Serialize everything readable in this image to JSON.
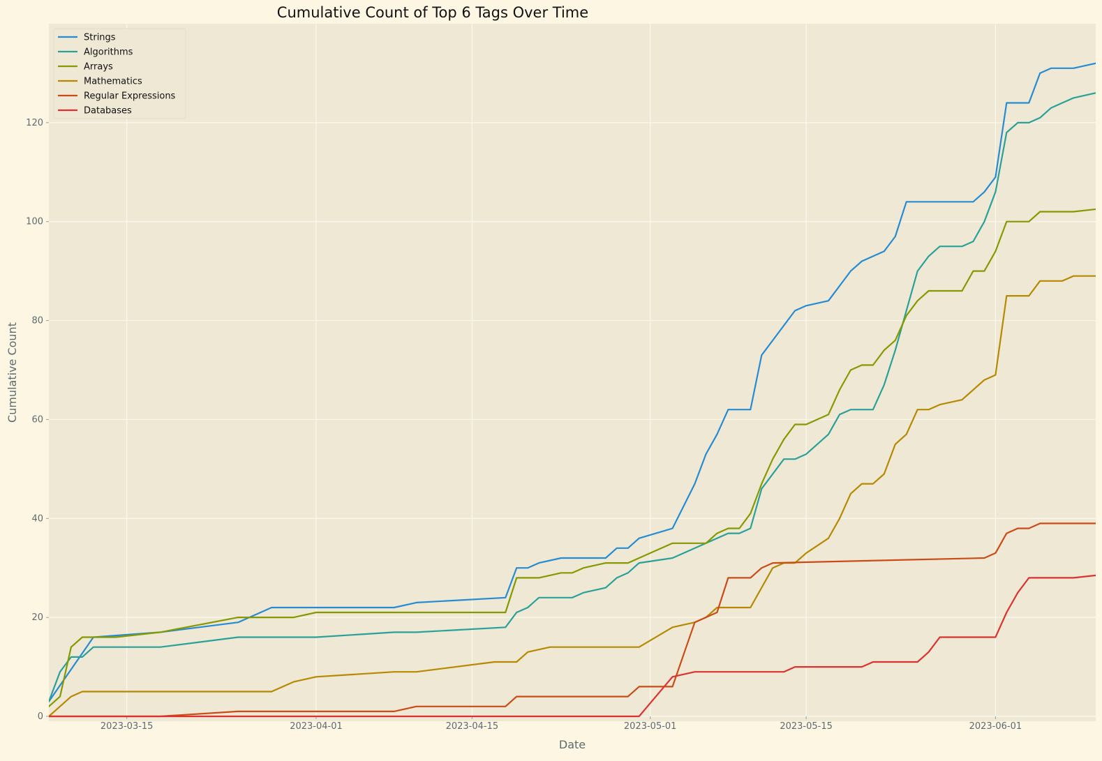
{
  "chart_data": {
    "type": "line",
    "title": "Cumulative Count of Top 6 Tags Over Time",
    "xlabel": "Date",
    "ylabel": "Cumulative Count",
    "x_axis_type": "date",
    "xlim": [
      "2023-03-08",
      "2023-06-10"
    ],
    "ylim": [
      0,
      140
    ],
    "xticks": [
      "2023-03-15",
      "2023-04-01",
      "2023-04-15",
      "2023-05-01",
      "2023-05-15",
      "2023-06-01"
    ],
    "yticks": [
      0,
      20,
      40,
      60,
      80,
      100,
      120
    ],
    "grid": true,
    "legend_position": "top-left",
    "colors": {
      "page_background": "#fdf6e3",
      "plot_background": "#eee8d5",
      "grid": "#fbf8ee"
    },
    "series": [
      {
        "name": "Strings",
        "color": "#268bd2",
        "points": [
          [
            "2023-03-08",
            3
          ],
          [
            "2023-03-12",
            16
          ],
          [
            "2023-03-18",
            17
          ],
          [
            "2023-03-25",
            19
          ],
          [
            "2023-03-28",
            22
          ],
          [
            "2023-04-08",
            22
          ],
          [
            "2023-04-10",
            23
          ],
          [
            "2023-04-18",
            24
          ],
          [
            "2023-04-19",
            30
          ],
          [
            "2023-04-20",
            30
          ],
          [
            "2023-04-21",
            31
          ],
          [
            "2023-04-23",
            32
          ],
          [
            "2023-04-27",
            32
          ],
          [
            "2023-04-28",
            34
          ],
          [
            "2023-04-29",
            34
          ],
          [
            "2023-04-30",
            36
          ],
          [
            "2023-05-03",
            38
          ],
          [
            "2023-05-05",
            47
          ],
          [
            "2023-05-06",
            53
          ],
          [
            "2023-05-07",
            57
          ],
          [
            "2023-05-08",
            62
          ],
          [
            "2023-05-10",
            62
          ],
          [
            "2023-05-11",
            73
          ],
          [
            "2023-05-14",
            82
          ],
          [
            "2023-05-15",
            83
          ],
          [
            "2023-05-17",
            84
          ],
          [
            "2023-05-19",
            90
          ],
          [
            "2023-05-20",
            92
          ],
          [
            "2023-05-22",
            94
          ],
          [
            "2023-05-23",
            97
          ],
          [
            "2023-05-24",
            104
          ],
          [
            "2023-05-30",
            104
          ],
          [
            "2023-05-31",
            106
          ],
          [
            "2023-06-01",
            109
          ],
          [
            "2023-06-02",
            124
          ],
          [
            "2023-06-04",
            124
          ],
          [
            "2023-06-05",
            130
          ],
          [
            "2023-06-06",
            131
          ],
          [
            "2023-06-08",
            131
          ],
          [
            "2023-06-12",
            133
          ]
        ]
      },
      {
        "name": "Algorithms",
        "color": "#2aa198",
        "points": [
          [
            "2023-03-08",
            3
          ],
          [
            "2023-03-09",
            9
          ],
          [
            "2023-03-10",
            12
          ],
          [
            "2023-03-11",
            12
          ],
          [
            "2023-03-12",
            14
          ],
          [
            "2023-03-18",
            14
          ],
          [
            "2023-03-25",
            16
          ],
          [
            "2023-04-01",
            16
          ],
          [
            "2023-04-08",
            17
          ],
          [
            "2023-04-10",
            17
          ],
          [
            "2023-04-18",
            18
          ],
          [
            "2023-04-19",
            21
          ],
          [
            "2023-04-20",
            22
          ],
          [
            "2023-04-21",
            24
          ],
          [
            "2023-04-24",
            24
          ],
          [
            "2023-04-25",
            25
          ],
          [
            "2023-04-27",
            26
          ],
          [
            "2023-04-28",
            28
          ],
          [
            "2023-04-29",
            29
          ],
          [
            "2023-04-30",
            31
          ],
          [
            "2023-05-03",
            32
          ],
          [
            "2023-05-08",
            37
          ],
          [
            "2023-05-09",
            37
          ],
          [
            "2023-05-10",
            38
          ],
          [
            "2023-05-11",
            46
          ],
          [
            "2023-05-13",
            52
          ],
          [
            "2023-05-14",
            52
          ],
          [
            "2023-05-15",
            53
          ],
          [
            "2023-05-17",
            57
          ],
          [
            "2023-05-18",
            61
          ],
          [
            "2023-05-19",
            62
          ],
          [
            "2023-05-21",
            62
          ],
          [
            "2023-05-22",
            67
          ],
          [
            "2023-05-23",
            74
          ],
          [
            "2023-05-24",
            82
          ],
          [
            "2023-05-25",
            90
          ],
          [
            "2023-05-26",
            93
          ],
          [
            "2023-05-27",
            95
          ],
          [
            "2023-05-29",
            95
          ],
          [
            "2023-05-30",
            96
          ],
          [
            "2023-05-31",
            100
          ],
          [
            "2023-06-01",
            106
          ],
          [
            "2023-06-02",
            118
          ],
          [
            "2023-06-03",
            120
          ],
          [
            "2023-06-04",
            120
          ],
          [
            "2023-06-05",
            121
          ],
          [
            "2023-06-06",
            123
          ],
          [
            "2023-06-08",
            125
          ],
          [
            "2023-06-12",
            127
          ]
        ]
      },
      {
        "name": "Arrays",
        "color": "#859900",
        "points": [
          [
            "2023-03-08",
            2
          ],
          [
            "2023-03-09",
            4
          ],
          [
            "2023-03-10",
            14
          ],
          [
            "2023-03-11",
            16
          ],
          [
            "2023-03-14",
            16
          ],
          [
            "2023-03-18",
            17
          ],
          [
            "2023-03-25",
            20
          ],
          [
            "2023-03-30",
            20
          ],
          [
            "2023-04-01",
            21
          ],
          [
            "2023-04-18",
            21
          ],
          [
            "2023-04-19",
            28
          ],
          [
            "2023-04-21",
            28
          ],
          [
            "2023-04-23",
            29
          ],
          [
            "2023-04-24",
            29
          ],
          [
            "2023-04-25",
            30
          ],
          [
            "2023-04-27",
            31
          ],
          [
            "2023-04-29",
            31
          ],
          [
            "2023-04-30",
            32
          ],
          [
            "2023-05-03",
            35
          ],
          [
            "2023-05-06",
            35
          ],
          [
            "2023-05-07",
            37
          ],
          [
            "2023-05-08",
            38
          ],
          [
            "2023-05-09",
            38
          ],
          [
            "2023-05-10",
            41
          ],
          [
            "2023-05-11",
            47
          ],
          [
            "2023-05-12",
            52
          ],
          [
            "2023-05-13",
            56
          ],
          [
            "2023-05-14",
            59
          ],
          [
            "2023-05-15",
            59
          ],
          [
            "2023-05-17",
            61
          ],
          [
            "2023-05-18",
            66
          ],
          [
            "2023-05-19",
            70
          ],
          [
            "2023-05-20",
            71
          ],
          [
            "2023-05-21",
            71
          ],
          [
            "2023-05-22",
            74
          ],
          [
            "2023-05-23",
            76
          ],
          [
            "2023-05-24",
            81
          ],
          [
            "2023-05-25",
            84
          ],
          [
            "2023-05-26",
            86
          ],
          [
            "2023-05-29",
            86
          ],
          [
            "2023-05-30",
            90
          ],
          [
            "2023-05-31",
            90
          ],
          [
            "2023-06-01",
            94
          ],
          [
            "2023-06-02",
            100
          ],
          [
            "2023-06-04",
            100
          ],
          [
            "2023-06-05",
            102
          ],
          [
            "2023-06-08",
            102
          ],
          [
            "2023-06-12",
            103
          ]
        ]
      },
      {
        "name": "Mathematics",
        "color": "#b58900",
        "points": [
          [
            "2023-03-08",
            0
          ],
          [
            "2023-03-10",
            4
          ],
          [
            "2023-03-11",
            5
          ],
          [
            "2023-03-28",
            5
          ],
          [
            "2023-03-30",
            7
          ],
          [
            "2023-04-01",
            8
          ],
          [
            "2023-04-08",
            9
          ],
          [
            "2023-04-10",
            9
          ],
          [
            "2023-04-17",
            11
          ],
          [
            "2023-04-19",
            11
          ],
          [
            "2023-04-20",
            13
          ],
          [
            "2023-04-22",
            14
          ],
          [
            "2023-04-30",
            14
          ],
          [
            "2023-05-03",
            18
          ],
          [
            "2023-05-05",
            19
          ],
          [
            "2023-05-06",
            20
          ],
          [
            "2023-05-07",
            22
          ],
          [
            "2023-05-10",
            22
          ],
          [
            "2023-05-12",
            30
          ],
          [
            "2023-05-13",
            31
          ],
          [
            "2023-05-14",
            31
          ],
          [
            "2023-05-15",
            33
          ],
          [
            "2023-05-17",
            36
          ],
          [
            "2023-05-18",
            40
          ],
          [
            "2023-05-19",
            45
          ],
          [
            "2023-05-20",
            47
          ],
          [
            "2023-05-21",
            47
          ],
          [
            "2023-05-22",
            49
          ],
          [
            "2023-05-23",
            55
          ],
          [
            "2023-05-24",
            57
          ],
          [
            "2023-05-25",
            62
          ],
          [
            "2023-05-26",
            62
          ],
          [
            "2023-05-27",
            63
          ],
          [
            "2023-05-29",
            64
          ],
          [
            "2023-05-31",
            68
          ],
          [
            "2023-06-01",
            69
          ],
          [
            "2023-06-02",
            85
          ],
          [
            "2023-06-04",
            85
          ],
          [
            "2023-06-05",
            88
          ],
          [
            "2023-06-07",
            88
          ],
          [
            "2023-06-08",
            89
          ],
          [
            "2023-06-12",
            89
          ]
        ]
      },
      {
        "name": "Regular Expressions",
        "color": "#cb4b16",
        "points": [
          [
            "2023-03-08",
            0
          ],
          [
            "2023-03-18",
            0
          ],
          [
            "2023-03-25",
            1
          ],
          [
            "2023-04-08",
            1
          ],
          [
            "2023-04-10",
            2
          ],
          [
            "2023-04-18",
            2
          ],
          [
            "2023-04-19",
            4
          ],
          [
            "2023-04-29",
            4
          ],
          [
            "2023-04-30",
            6
          ],
          [
            "2023-05-03",
            6
          ],
          [
            "2023-05-05",
            19
          ],
          [
            "2023-05-07",
            21
          ],
          [
            "2023-05-08",
            28
          ],
          [
            "2023-05-10",
            28
          ],
          [
            "2023-05-11",
            30
          ],
          [
            "2023-05-12",
            31
          ],
          [
            "2023-05-31",
            32
          ],
          [
            "2023-06-01",
            33
          ],
          [
            "2023-06-02",
            37
          ],
          [
            "2023-06-03",
            38
          ],
          [
            "2023-06-04",
            38
          ],
          [
            "2023-06-05",
            39
          ],
          [
            "2023-06-12",
            39
          ]
        ]
      },
      {
        "name": "Databases",
        "color": "#dc322f",
        "points": [
          [
            "2023-03-08",
            0
          ],
          [
            "2023-04-30",
            0
          ],
          [
            "2023-05-03",
            8
          ],
          [
            "2023-05-05",
            9
          ],
          [
            "2023-05-13",
            9
          ],
          [
            "2023-05-14",
            10
          ],
          [
            "2023-05-20",
            10
          ],
          [
            "2023-05-21",
            11
          ],
          [
            "2023-05-25",
            11
          ],
          [
            "2023-05-26",
            13
          ],
          [
            "2023-05-27",
            16
          ],
          [
            "2023-06-01",
            16
          ],
          [
            "2023-06-02",
            21
          ],
          [
            "2023-06-03",
            25
          ],
          [
            "2023-06-04",
            28
          ],
          [
            "2023-06-08",
            28
          ],
          [
            "2023-06-12",
            29
          ]
        ]
      }
    ]
  }
}
